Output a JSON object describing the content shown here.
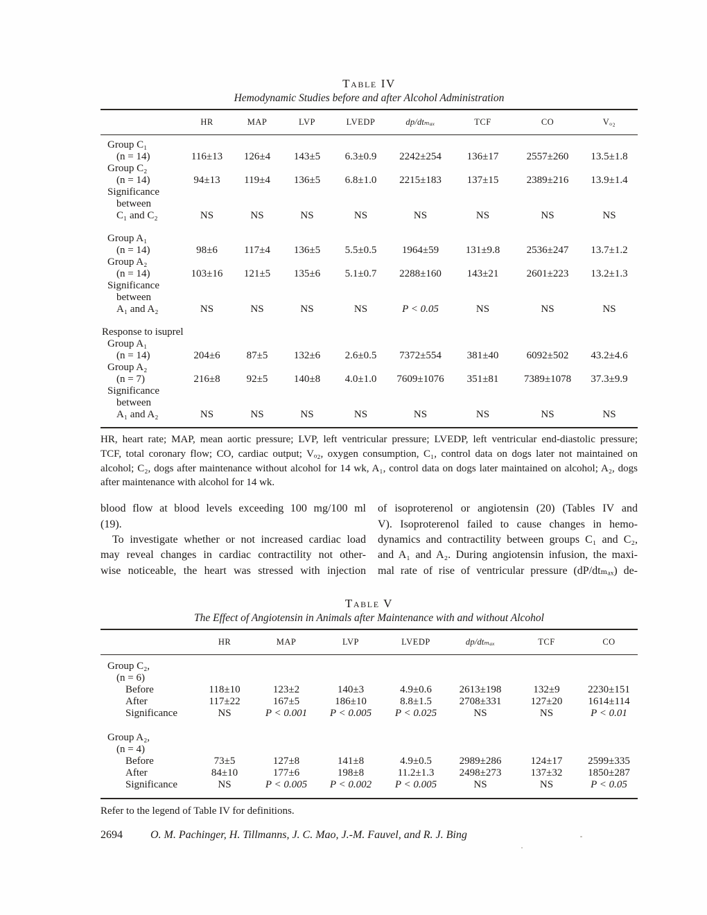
{
  "page": {
    "number": "2694",
    "authors": "O. M. Pachinger, H. Tillmanns, J. C. Mao, J.-M. Fauvel, and R. J. Bing"
  },
  "t4": {
    "title": "Table IV",
    "subtitle": "Hemodynamic Studies before and after Alcohol Administration",
    "columns": [
      "HR",
      "MAP",
      "LVP",
      "LVEDP",
      "dp/dtₘₐₓ",
      "TCF",
      "CO",
      "Vₒ₂"
    ],
    "rows": [
      {
        "label": "Group C₁",
        "cells": []
      },
      {
        "label": "(n = 14)",
        "cells": [
          "116±13",
          "126±4",
          "143±5",
          "6.3±0.9",
          "2242±254",
          "136±17",
          "2557±260",
          "13.5±1.8"
        ]
      },
      {
        "label": "Group C₂",
        "cells": []
      },
      {
        "label": "(n = 14)",
        "cells": [
          "94±13",
          "119±4",
          "136±5",
          "6.8±1.0",
          "2215±183",
          "137±15",
          "2389±216",
          "13.9±1.4"
        ]
      },
      {
        "label": "Significance",
        "cells": []
      },
      {
        "label": "between",
        "cells": []
      },
      {
        "label": "C₁ and C₂",
        "cells": [
          "NS",
          "NS",
          "NS",
          "NS",
          "NS",
          "NS",
          "NS",
          "NS"
        ]
      },
      {
        "label": "Group A₁",
        "cells": []
      },
      {
        "label": "(n = 14)",
        "cells": [
          "98±6",
          "117±4",
          "136±5",
          "5.5±0.5",
          "1964±59",
          "131±9.8",
          "2536±247",
          "13.7±1.2"
        ]
      },
      {
        "label": "Group A₂",
        "cells": []
      },
      {
        "label": "(n = 14)",
        "cells": [
          "103±16",
          "121±5",
          "135±6",
          "5.1±0.7",
          "2288±160",
          "143±21",
          "2601±223",
          "13.2±1.3"
        ]
      },
      {
        "label": "Significance",
        "cells": []
      },
      {
        "label": "between",
        "cells": []
      },
      {
        "label": "A₁ and A₂",
        "cells": [
          "NS",
          "NS",
          "NS",
          "NS",
          "P < 0.05",
          "NS",
          "NS",
          "NS"
        ]
      },
      {
        "label": "Response to isuprel",
        "cells": []
      },
      {
        "label": "Group A₁",
        "cells": []
      },
      {
        "label": "(n = 14)",
        "cells": [
          "204±6",
          "87±5",
          "132±6",
          "2.6±0.5",
          "7372±554",
          "381±40",
          "6092±502",
          "43.2±4.6"
        ]
      },
      {
        "label": "Group A₂",
        "cells": []
      },
      {
        "label": "(n = 7)",
        "cells": [
          "216±8",
          "92±5",
          "140±8",
          "4.0±1.0",
          "7609±1076",
          "351±81",
          "7389±1078",
          "37.3±9.9"
        ]
      },
      {
        "label": "Significance",
        "cells": []
      },
      {
        "label": "between",
        "cells": []
      },
      {
        "label": "A₁ and A₂",
        "cells": [
          "NS",
          "NS",
          "NS",
          "NS",
          "NS",
          "NS",
          "NS",
          "NS"
        ]
      }
    ],
    "legend_lines": [
      "HR, heart rate; MAP, mean aortic pressure; LVP, left ventricular pressure; LVEDP, left ventricular end-diastolic pressure;",
      "TCF, total coronary flow; CO, cardiac output; Vₒ₂, oxygen consumption, C₁, control data on dogs later not maintained on",
      "alcohol; C₂, dogs after maintenance without alcohol for 14 wk, A₁, control data on dogs later maintained on alcohol; A₂, dogs",
      "after maintenance with alcohol for 14 wk."
    ]
  },
  "body": {
    "left": [
      "blood flow at blood levels exceeding 100 mg/100 ml",
      "(19).",
      "To investigate whether or not increased cardiac load",
      "may reveal changes in cardiac contractility not other-",
      "wise noticeable, the heart was stressed with injection"
    ],
    "right": [
      "of isoproterenol or angiotensin (20) (Tables IV and",
      "V). Isoproterenol failed to cause changes in hemo-",
      "dynamics and contractility between groups C₁ and C₂,",
      "and A₁ and A₂. During angiotensin infusion, the maxi-",
      "mal rate of rise of ventricular pressure (dP/dtₘₐₓ) de-"
    ]
  },
  "t5": {
    "title": "Table V",
    "subtitle": "The Effect of Angiotensin in Animals after Maintenance with and without Alcohol",
    "columns": [
      "HR",
      "MAP",
      "LVP",
      "LVEDP",
      "dp/dtₘₐₓ",
      "TCF",
      "CO"
    ],
    "rows": [
      {
        "label": "Group C₂,",
        "cells": []
      },
      {
        "label": "(n = 6)",
        "cells": []
      },
      {
        "label": "Before",
        "cells": [
          "118±10",
          "123±2",
          "140±3",
          "4.9±0.6",
          "2613±198",
          "132±9",
          "2230±151"
        ]
      },
      {
        "label": "After",
        "cells": [
          "117±22",
          "167±5",
          "186±10",
          "8.8±1.5",
          "2708±331",
          "127±20",
          "1614±114"
        ]
      },
      {
        "label": "Significance",
        "cells": [
          "NS",
          "P < 0.001",
          "P < 0.005",
          "P < 0.025",
          "NS",
          "NS",
          "P < 0.01"
        ]
      },
      {
        "label": "Group A₂,",
        "cells": []
      },
      {
        "label": "(n = 4)",
        "cells": []
      },
      {
        "label": "Before",
        "cells": [
          "73±5",
          "127±8",
          "141±8",
          "4.9±0.5",
          "2989±286",
          "124±17",
          "2599±335"
        ]
      },
      {
        "label": "After",
        "cells": [
          "84±10",
          "177±6",
          "198±8",
          "11.2±1.3",
          "2498±273",
          "137±32",
          "1850±287"
        ]
      },
      {
        "label": "Significance",
        "cells": [
          "NS",
          "P < 0.005",
          "P < 0.002",
          "P < 0.005",
          "NS",
          "NS",
          "P < 0.05"
        ]
      }
    ],
    "note": "Refer to the legend of Table IV for definitions."
  }
}
